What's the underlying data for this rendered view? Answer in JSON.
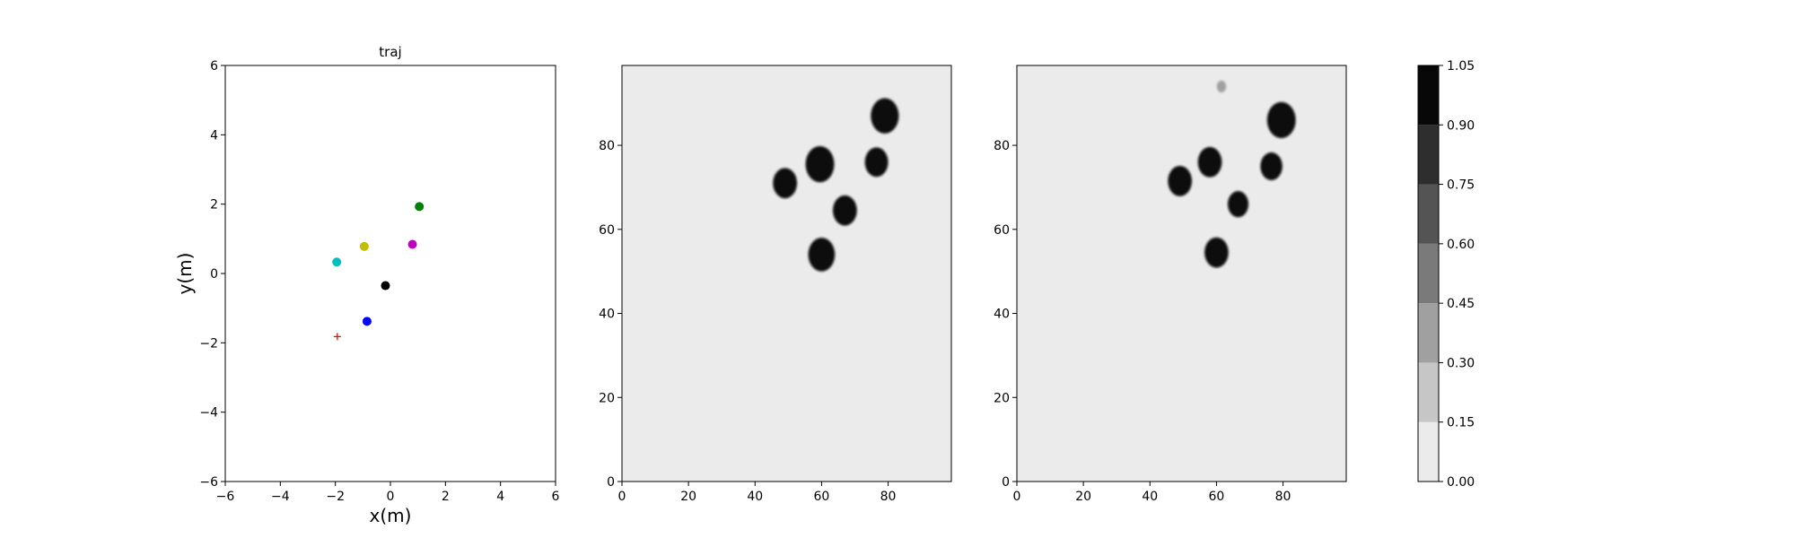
{
  "chart_data": [
    {
      "type": "scatter",
      "title": "traj",
      "xlabel": "x(m)",
      "ylabel": "y(m)",
      "xlim": [
        -6,
        6
      ],
      "ylim": [
        -6,
        6
      ],
      "xticks": [
        "−6",
        "−4",
        "−2",
        "0",
        "2",
        "4",
        "6"
      ],
      "yticks": [
        "−6",
        "−4",
        "−2",
        "0",
        "2",
        "4",
        "6"
      ],
      "xtick_values": [
        -6,
        -4,
        -2,
        0,
        2,
        4,
        6
      ],
      "ytick_values": [
        -6,
        -4,
        -2,
        0,
        2,
        4,
        6
      ],
      "grid": false,
      "points": [
        {
          "x": 1.05,
          "y": 1.93,
          "color": "#008000",
          "marker": "circle"
        },
        {
          "x": -0.95,
          "y": 0.78,
          "color": "#bfbf00",
          "marker": "circle"
        },
        {
          "x": 0.8,
          "y": 0.84,
          "color": "#bf00bf",
          "marker": "circle"
        },
        {
          "x": -1.95,
          "y": 0.33,
          "color": "#00bfbf",
          "marker": "circle"
        },
        {
          "x": -0.18,
          "y": -0.35,
          "color": "#000000",
          "marker": "circle"
        },
        {
          "x": -0.85,
          "y": -1.38,
          "color": "#0000ff",
          "marker": "circle"
        },
        {
          "x": -1.93,
          "y": -1.82,
          "color": "#ff0000",
          "marker": "plus"
        }
      ]
    },
    {
      "type": "heatmap",
      "title": "",
      "xlim": [
        0,
        99
      ],
      "ylim": [
        0,
        99
      ],
      "xticks": [
        "0",
        "20",
        "40",
        "60",
        "80"
      ],
      "yticks": [
        "0",
        "20",
        "40",
        "60",
        "80"
      ],
      "xtick_values": [
        0,
        20,
        40,
        60,
        80
      ],
      "ytick_values": [
        0,
        20,
        40,
        60,
        80
      ],
      "background_value": 0.0,
      "blobs": [
        {
          "x": 79,
          "y": 87,
          "r": 4.2,
          "value": 1.0
        },
        {
          "x": 49,
          "y": 71,
          "r": 3.6,
          "value": 1.0
        },
        {
          "x": 59.5,
          "y": 75.5,
          "r": 4.3,
          "value": 1.0
        },
        {
          "x": 76.5,
          "y": 76,
          "r": 3.5,
          "value": 1.0
        },
        {
          "x": 67,
          "y": 64.5,
          "r": 3.6,
          "value": 1.0
        },
        {
          "x": 60,
          "y": 54,
          "r": 4.0,
          "value": 1.0
        }
      ]
    },
    {
      "type": "heatmap",
      "title": "",
      "xlim": [
        0,
        99
      ],
      "ylim": [
        0,
        99
      ],
      "xticks": [
        "0",
        "20",
        "40",
        "60",
        "80"
      ],
      "yticks": [
        "0",
        "20",
        "40",
        "60",
        "80"
      ],
      "xtick_values": [
        0,
        20,
        40,
        60,
        80
      ],
      "ytick_values": [
        0,
        20,
        40,
        60,
        80
      ],
      "background_value": 0.0,
      "blobs": [
        {
          "x": 61.5,
          "y": 94,
          "r": 1.4,
          "value": 0.35
        },
        {
          "x": 79.5,
          "y": 86,
          "r": 4.3,
          "value": 1.0
        },
        {
          "x": 49,
          "y": 71.5,
          "r": 3.6,
          "value": 1.0
        },
        {
          "x": 58,
          "y": 76,
          "r": 3.6,
          "value": 1.0
        },
        {
          "x": 76.5,
          "y": 75,
          "r": 3.3,
          "value": 1.0
        },
        {
          "x": 66.5,
          "y": 66,
          "r": 3.1,
          "value": 1.0
        },
        {
          "x": 60,
          "y": 54.5,
          "r": 3.6,
          "value": 1.0
        }
      ]
    },
    {
      "type": "colorbar",
      "levels": [
        0.0,
        0.15,
        0.3,
        0.45,
        0.6,
        0.75,
        0.9,
        1.05
      ],
      "tick_labels": [
        "0.00",
        "0.15",
        "0.30",
        "0.45",
        "0.60",
        "0.75",
        "0.90",
        "1.05"
      ],
      "colors": [
        "#ebebeb",
        "#c6c6c6",
        "#a0a0a0",
        "#7a7a7a",
        "#545454",
        "#2e2e2e",
        "#080808"
      ]
    }
  ]
}
